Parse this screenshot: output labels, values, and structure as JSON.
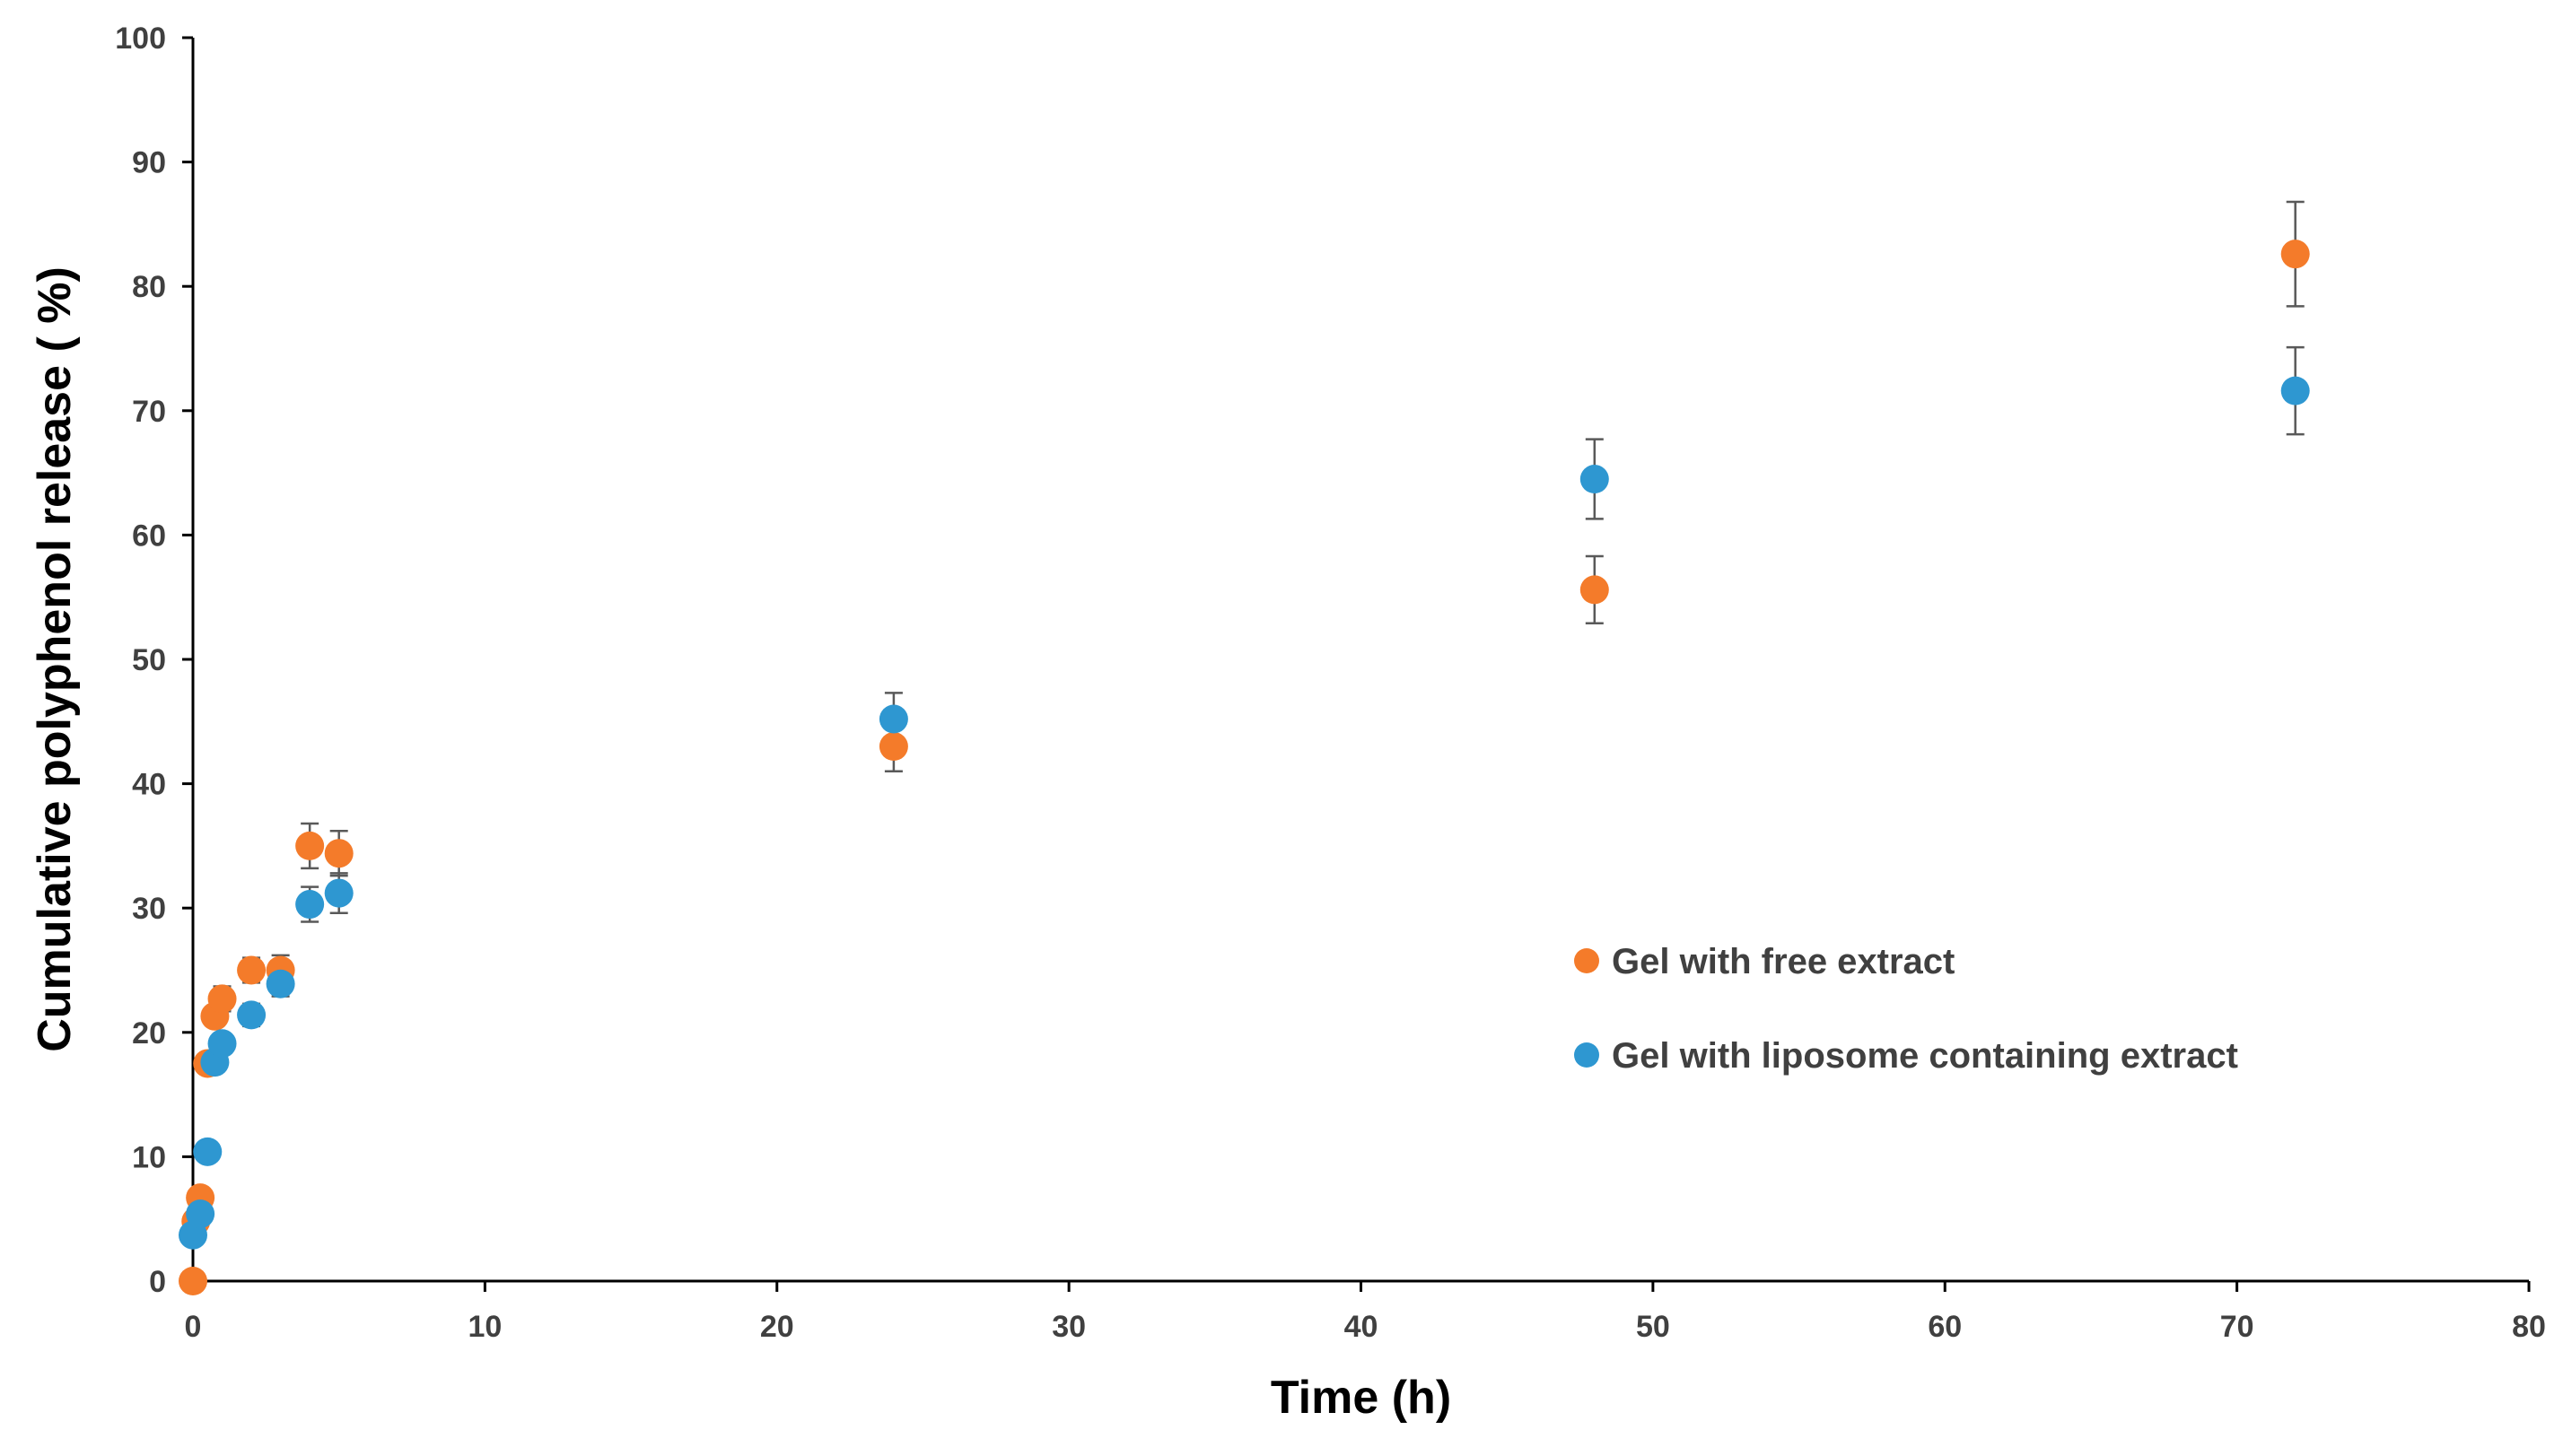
{
  "chart_data": {
    "type": "scatter",
    "title": "",
    "xlabel": "Time (h)",
    "ylabel": "Cumulative polyphenol release ( %)",
    "xlim": [
      0,
      80
    ],
    "ylim": [
      0,
      100
    ],
    "xticks": [
      0,
      10,
      20,
      30,
      40,
      50,
      60,
      70,
      80
    ],
    "yticks": [
      0,
      10,
      20,
      30,
      40,
      50,
      60,
      70,
      80,
      90,
      100
    ],
    "grid": false,
    "legend_position": "right",
    "series": [
      {
        "name": "Gel with free extract",
        "color": "#F47B2A",
        "points": [
          {
            "x": 0,
            "y": 0,
            "err": 0
          },
          {
            "x": 0.1,
            "y": 4.8,
            "err": 0.5
          },
          {
            "x": 0.25,
            "y": 6.7,
            "err": 0.5
          },
          {
            "x": 0.5,
            "y": 17.5,
            "err": 0.8
          },
          {
            "x": 0.75,
            "y": 21.3,
            "err": 0.8
          },
          {
            "x": 1,
            "y": 22.7,
            "err": 1.0
          },
          {
            "x": 2,
            "y": 25.0,
            "err": 1.0
          },
          {
            "x": 3,
            "y": 25.0,
            "err": 1.2
          },
          {
            "x": 4,
            "y": 35.0,
            "err": 1.8
          },
          {
            "x": 5,
            "y": 34.4,
            "err": 1.8
          },
          {
            "x": 24,
            "y": 43.0,
            "err": 2.0
          },
          {
            "x": 48,
            "y": 55.6,
            "err": 2.7
          },
          {
            "x": 72,
            "y": 82.6,
            "err": 4.2
          }
        ]
      },
      {
        "name": "Gel with liposome containing extract",
        "color": "#2E97D1",
        "points": [
          {
            "x": 0,
            "y": 3.7,
            "err": 0.4
          },
          {
            "x": 0.25,
            "y": 5.4,
            "err": 0.5
          },
          {
            "x": 0.5,
            "y": 10.4,
            "err": 0.6
          },
          {
            "x": 0.75,
            "y": 17.6,
            "err": 0.7
          },
          {
            "x": 1,
            "y": 19.1,
            "err": 0.8
          },
          {
            "x": 2,
            "y": 21.4,
            "err": 0.9
          },
          {
            "x": 3,
            "y": 23.9,
            "err": 1.0
          },
          {
            "x": 4,
            "y": 30.3,
            "err": 1.4
          },
          {
            "x": 5,
            "y": 31.2,
            "err": 1.6
          },
          {
            "x": 24,
            "y": 45.2,
            "err": 2.1
          },
          {
            "x": 48,
            "y": 64.5,
            "err": 3.2
          },
          {
            "x": 72,
            "y": 71.6,
            "err": 3.5
          }
        ]
      }
    ]
  }
}
